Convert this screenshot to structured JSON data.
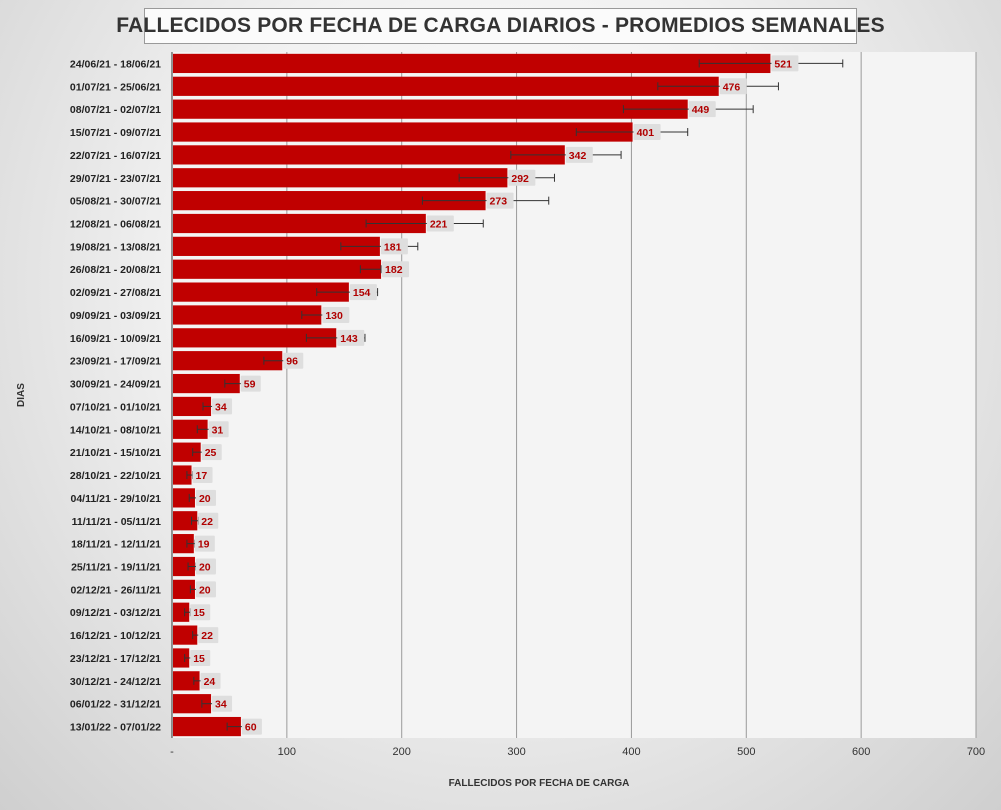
{
  "chart_data": {
    "type": "bar",
    "orientation": "horizontal",
    "title": "FALLECIDOS POR FECHA DE CARGA DIARIOS - PROMEDIOS SEMANALES",
    "xlabel": "FALLECIDOS POR FECHA DE CARGA",
    "ylabel": "DIAS",
    "xlim": [
      0,
      700
    ],
    "x_ticks": [
      "-",
      "100",
      "200",
      "300",
      "400",
      "500",
      "600",
      "700"
    ],
    "grid": "vertical",
    "bar_color": "#c00000",
    "label_color": "#b00000",
    "categories": [
      "24/06/21 - 18/06/21",
      "01/07/21 - 25/06/21",
      "08/07/21 - 02/07/21",
      "15/07/21 - 09/07/21",
      "22/07/21 - 16/07/21",
      "29/07/21 - 23/07/21",
      "05/08/21 - 30/07/21",
      "12/08/21 - 06/08/21",
      "19/08/21 - 13/08/21",
      "26/08/21 - 20/08/21",
      "02/09/21 - 27/08/21",
      "09/09/21 - 03/09/21",
      "16/09/21 - 10/09/21",
      "23/09/21 - 17/09/21",
      "30/09/21 - 24/09/21",
      "07/10/21 - 01/10/21",
      "14/10/21 - 08/10/21",
      "21/10/21 - 15/10/21",
      "28/10/21 - 22/10/21",
      "04/11/21 - 29/10/21",
      "11/11/21 - 05/11/21",
      "18/11/21 - 12/11/21",
      "25/11/21 - 19/11/21",
      "02/12/21 - 26/11/21",
      "09/12/21 - 03/12/21",
      "16/12/21 - 10/12/21",
      "23/12/21 - 17/12/21",
      "30/12/21 - 24/12/21",
      "06/01/22 - 31/12/21",
      "13/01/22 - 07/01/22"
    ],
    "values": [
      521,
      476,
      449,
      401,
      342,
      292,
      273,
      221,
      181,
      182,
      154,
      130,
      143,
      96,
      59,
      34,
      31,
      25,
      17,
      20,
      22,
      19,
      20,
      20,
      15,
      22,
      15,
      24,
      34,
      60
    ],
    "error_bars": [
      [
        459,
        584
      ],
      [
        423,
        528
      ],
      [
        393,
        506
      ],
      [
        352,
        449
      ],
      [
        295,
        391
      ],
      [
        250,
        333
      ],
      [
        218,
        328
      ],
      [
        169,
        271
      ],
      [
        147,
        214
      ],
      [
        164,
        182
      ],
      [
        126,
        179
      ],
      [
        113,
        139
      ],
      [
        117,
        168
      ],
      [
        80,
        101
      ],
      [
        46,
        62
      ],
      [
        27,
        36
      ],
      [
        22,
        34
      ],
      [
        18,
        27
      ],
      [
        13,
        18
      ],
      [
        15,
        22
      ],
      [
        17,
        23
      ],
      [
        13,
        20
      ],
      [
        14,
        21
      ],
      [
        16,
        22
      ],
      [
        11,
        16
      ],
      [
        18,
        24
      ],
      [
        11,
        18
      ],
      [
        19,
        28
      ],
      [
        26,
        37
      ],
      [
        48,
        62
      ]
    ]
  }
}
